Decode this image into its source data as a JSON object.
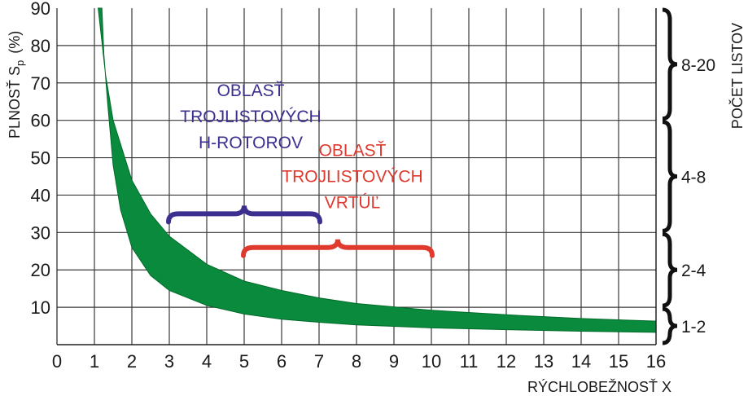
{
  "chart_data": {
    "type": "area",
    "ylabel": "PLNOSŤ S",
    "ylabel_sub": "p",
    "ylabel_unit": "(%)",
    "xlabel": "RÝCHLOBEŽNOSŤ  X",
    "xlim": [
      0,
      16
    ],
    "ylim": [
      0,
      90
    ],
    "xticks": [
      "0",
      "1",
      "2",
      "3",
      "4",
      "5",
      "6",
      "7",
      "8",
      "9",
      "10",
      "11",
      "12",
      "13",
      "14",
      "15",
      "16"
    ],
    "yticks": [
      "10",
      "20",
      "30",
      "40",
      "50",
      "60",
      "70",
      "80",
      "90"
    ],
    "grid": true,
    "band": {
      "color": "#0a8a3c",
      "upper": [
        [
          1.1,
          90
        ],
        [
          1.3,
          72
        ],
        [
          1.5,
          60
        ],
        [
          2,
          44
        ],
        [
          2.5,
          35
        ],
        [
          3,
          29
        ],
        [
          4,
          21.5
        ],
        [
          5,
          17
        ],
        [
          6,
          14.5
        ],
        [
          7,
          12.5
        ],
        [
          8,
          11
        ],
        [
          10,
          9.2
        ],
        [
          12,
          8
        ],
        [
          14,
          7
        ],
        [
          16,
          6.3
        ]
      ],
      "lower": [
        [
          16,
          3.3
        ],
        [
          14,
          3.6
        ],
        [
          12,
          4
        ],
        [
          10,
          4.5
        ],
        [
          8,
          5.3
        ],
        [
          7,
          6
        ],
        [
          6,
          6.8
        ],
        [
          5,
          8.2
        ],
        [
          4,
          10.5
        ],
        [
          3,
          14.5
        ],
        [
          2.5,
          18.5
        ],
        [
          2,
          26
        ],
        [
          1.7,
          36
        ],
        [
          1.5,
          48
        ],
        [
          1.35,
          65
        ],
        [
          1.25,
          78
        ],
        [
          1.2,
          90
        ]
      ]
    },
    "annotations": [
      {
        "lines": [
          "OBLASŤ",
          "TROJLISTOVÝCH",
          "H-ROTOROV"
        ],
        "color": "#3b2f8f",
        "x_range": [
          3,
          7
        ],
        "brace_y": 35
      },
      {
        "lines": [
          "OBLASŤ",
          "TROJLISTOVÝCH",
          "VRTÚĽ"
        ],
        "color": "#e03a2f",
        "x_range": [
          5,
          10
        ],
        "brace_y": 26
      }
    ],
    "right_axis": {
      "title": "POČET LISTOV",
      "groups": [
        {
          "label": "8-20",
          "y_range": [
            60,
            90
          ]
        },
        {
          "label": "4-8",
          "y_range": [
            30,
            60
          ]
        },
        {
          "label": "2-4",
          "y_range": [
            10,
            30
          ]
        },
        {
          "label": "1-2",
          "y_range": [
            0,
            10
          ]
        }
      ]
    }
  }
}
